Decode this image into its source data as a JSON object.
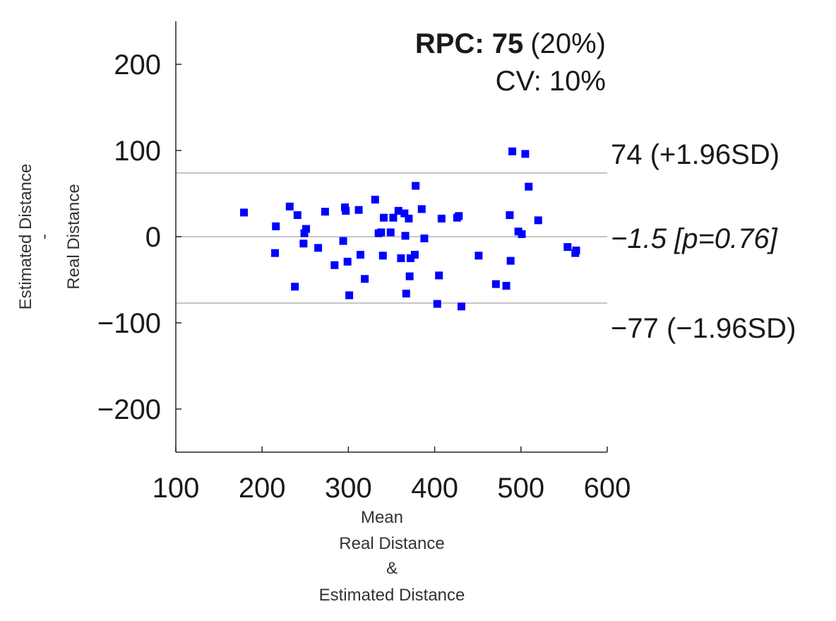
{
  "chart_data": {
    "type": "scatter",
    "title": "",
    "xlabel_lines": [
      "Mean",
      "Real Distance",
      "&",
      "Estimated Distance"
    ],
    "ylabel_lines": [
      "Estimated Distance",
      "-",
      "Real Distance"
    ],
    "xlim": [
      100,
      600
    ],
    "ylim": [
      -250,
      250
    ],
    "xticks": [
      100,
      200,
      300,
      400,
      500,
      600
    ],
    "xtick_labels": [
      "100",
      "200",
      "300",
      "400",
      "500",
      "600"
    ],
    "yticks": [
      200,
      100,
      0,
      -100,
      -200
    ],
    "ytick_labels": [
      "200",
      "100",
      "0",
      "−100",
      "−200"
    ],
    "grid": false,
    "marker_color": "#0000ff",
    "line_color": "#b3b3b3",
    "mean_line": 0,
    "mean_bias": -1.5,
    "upper_loa": 74,
    "lower_loa": -77,
    "rpc_label": "RPC: 75",
    "rpc_percent": "(20%)",
    "cv_text": "CV: 10%",
    "upper_label": "74 (+1.96SD)",
    "bias_label": "−1.5 [p=0.76]",
    "lower_label": "−77 (−1.96SD)",
    "points": [
      {
        "x": 179,
        "y": 28
      },
      {
        "x": 215,
        "y": -19
      },
      {
        "x": 216,
        "y": 12
      },
      {
        "x": 232,
        "y": 35
      },
      {
        "x": 238,
        "y": -58
      },
      {
        "x": 241,
        "y": 25
      },
      {
        "x": 248,
        "y": -8
      },
      {
        "x": 249,
        "y": 4
      },
      {
        "x": 251,
        "y": 9
      },
      {
        "x": 265,
        "y": -13
      },
      {
        "x": 273,
        "y": 29
      },
      {
        "x": 284,
        "y": -33
      },
      {
        "x": 294,
        "y": -5
      },
      {
        "x": 296,
        "y": 34
      },
      {
        "x": 297,
        "y": 30
      },
      {
        "x": 299,
        "y": -29
      },
      {
        "x": 301,
        "y": -68
      },
      {
        "x": 312,
        "y": 31
      },
      {
        "x": 314,
        "y": -21
      },
      {
        "x": 319,
        "y": -49
      },
      {
        "x": 331,
        "y": 43
      },
      {
        "x": 335,
        "y": 4
      },
      {
        "x": 338,
        "y": 5
      },
      {
        "x": 340,
        "y": -22
      },
      {
        "x": 341,
        "y": 22
      },
      {
        "x": 349,
        "y": 5
      },
      {
        "x": 352,
        "y": 22
      },
      {
        "x": 358,
        "y": 30
      },
      {
        "x": 361,
        "y": -25
      },
      {
        "x": 365,
        "y": 27
      },
      {
        "x": 366,
        "y": 1
      },
      {
        "x": 367,
        "y": -66
      },
      {
        "x": 370,
        "y": 21
      },
      {
        "x": 371,
        "y": -46
      },
      {
        "x": 372,
        "y": -25
      },
      {
        "x": 377,
        "y": -21
      },
      {
        "x": 378,
        "y": 59
      },
      {
        "x": 385,
        "y": 32
      },
      {
        "x": 388,
        "y": -2
      },
      {
        "x": 403,
        "y": -78
      },
      {
        "x": 405,
        "y": -45
      },
      {
        "x": 408,
        "y": 21
      },
      {
        "x": 426,
        "y": 22
      },
      {
        "x": 428,
        "y": 24
      },
      {
        "x": 431,
        "y": -81
      },
      {
        "x": 451,
        "y": -22
      },
      {
        "x": 471,
        "y": -55
      },
      {
        "x": 483,
        "y": -57
      },
      {
        "x": 487,
        "y": 25
      },
      {
        "x": 488,
        "y": -28
      },
      {
        "x": 490,
        "y": 99
      },
      {
        "x": 497,
        "y": 6
      },
      {
        "x": 501,
        "y": 3
      },
      {
        "x": 505,
        "y": 96
      },
      {
        "x": 509,
        "y": 58
      },
      {
        "x": 520,
        "y": 19
      },
      {
        "x": 554,
        "y": -12
      },
      {
        "x": 563,
        "y": -19
      },
      {
        "x": 564,
        "y": -16
      }
    ]
  }
}
